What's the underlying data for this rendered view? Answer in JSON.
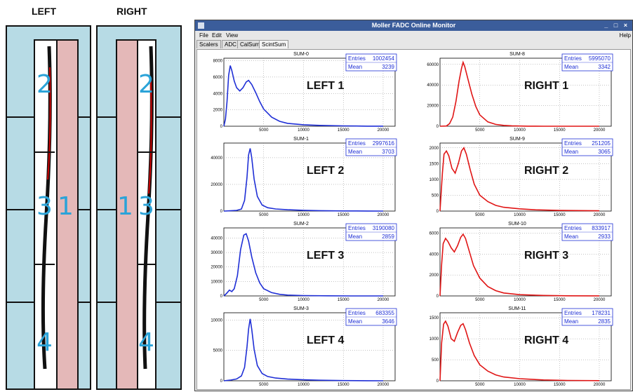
{
  "left_title": "LEFT",
  "right_title": "RIGHT",
  "left_numbers": [
    "2",
    "3",
    "1",
    "4"
  ],
  "right_numbers": [
    "2",
    "1",
    "3",
    "4"
  ],
  "window": {
    "title": "Moller FADC Online Monitor",
    "controls": "_ □ ×",
    "menu": [
      "File",
      "Edit",
      "View"
    ],
    "help": "Help",
    "tabs": [
      "Scalers",
      "ADC",
      "CalSum",
      "ScintSum"
    ],
    "active_tab": "ScintSum"
  },
  "colors": {
    "left": "#1f2fd6",
    "right": "#e01515",
    "stats_text": "#1f2fd6"
  },
  "plots": [
    {
      "name": "SUM-0",
      "label": "LEFT 1",
      "entries": "1002454",
      "mean": "3239",
      "side": "left",
      "y_ticks": [
        0,
        2000,
        4000,
        6000,
        8000
      ],
      "ymax": 8300,
      "curve": [
        [
          0,
          0
        ],
        [
          200,
          900
        ],
        [
          400,
          3000
        ],
        [
          600,
          6200
        ],
        [
          800,
          7400
        ],
        [
          1000,
          6800
        ],
        [
          1300,
          5500
        ],
        [
          1600,
          4700
        ],
        [
          2000,
          4300
        ],
        [
          2400,
          4700
        ],
        [
          2800,
          5400
        ],
        [
          3100,
          5600
        ],
        [
          3500,
          5100
        ],
        [
          4000,
          4100
        ],
        [
          4500,
          3000
        ],
        [
          5000,
          2100
        ],
        [
          6000,
          1100
        ],
        [
          7000,
          600
        ],
        [
          8000,
          350
        ],
        [
          10000,
          180
        ],
        [
          12000,
          100
        ],
        [
          15000,
          40
        ],
        [
          18000,
          10
        ],
        [
          20000,
          5
        ]
      ]
    },
    {
      "name": "SUM-8",
      "label": "RIGHT 1",
      "entries": "5995070",
      "mean": "3342",
      "side": "right",
      "y_ticks": [
        0,
        20000,
        40000,
        60000
      ],
      "ymax": 66000,
      "curve": [
        [
          0,
          0
        ],
        [
          800,
          200
        ],
        [
          1200,
          2500
        ],
        [
          1600,
          9000
        ],
        [
          2000,
          24000
        ],
        [
          2400,
          44000
        ],
        [
          2700,
          56000
        ],
        [
          2900,
          62000
        ],
        [
          3100,
          58000
        ],
        [
          3500,
          46000
        ],
        [
          4000,
          31000
        ],
        [
          4500,
          19000
        ],
        [
          5000,
          11000
        ],
        [
          6000,
          4200
        ],
        [
          7000,
          1800
        ],
        [
          8000,
          800
        ],
        [
          9000,
          400
        ],
        [
          10000,
          200
        ],
        [
          11000,
          100
        ],
        [
          12000,
          40
        ],
        [
          13000,
          10
        ],
        [
          20000,
          0
        ]
      ]
    },
    {
      "name": "SUM-1",
      "label": "LEFT 2",
      "entries": "2997616",
      "mean": "3703",
      "side": "left",
      "y_ticks": [
        0,
        20000,
        40000
      ],
      "ymax": 51000,
      "curve": [
        [
          0,
          0
        ],
        [
          800,
          200
        ],
        [
          1600,
          500
        ],
        [
          2200,
          1500
        ],
        [
          2600,
          8000
        ],
        [
          2900,
          25000
        ],
        [
          3100,
          42000
        ],
        [
          3300,
          47000
        ],
        [
          3500,
          40000
        ],
        [
          3800,
          24000
        ],
        [
          4200,
          11000
        ],
        [
          4800,
          4500
        ],
        [
          5500,
          2500
        ],
        [
          6500,
          1600
        ],
        [
          8000,
          1000
        ],
        [
          10000,
          600
        ],
        [
          12000,
          300
        ],
        [
          15000,
          120
        ],
        [
          18000,
          40
        ],
        [
          20000,
          10
        ]
      ]
    },
    {
      "name": "SUM-9",
      "label": "RIGHT 2",
      "entries": "251205",
      "mean": "3065",
      "side": "right",
      "y_ticks": [
        0,
        500,
        1000,
        1500,
        2000
      ],
      "ymax": 2150,
      "curve": [
        [
          0,
          0
        ],
        [
          300,
          1200
        ],
        [
          500,
          1800
        ],
        [
          800,
          1900
        ],
        [
          1100,
          1750
        ],
        [
          1500,
          1350
        ],
        [
          1900,
          1200
        ],
        [
          2300,
          1500
        ],
        [
          2700,
          1900
        ],
        [
          3000,
          2000
        ],
        [
          3300,
          1800
        ],
        [
          3800,
          1300
        ],
        [
          4300,
          850
        ],
        [
          5000,
          500
        ],
        [
          6000,
          300
        ],
        [
          7000,
          180
        ],
        [
          8000,
          120
        ],
        [
          10000,
          70
        ],
        [
          12000,
          40
        ],
        [
          15000,
          20
        ],
        [
          20000,
          8
        ]
      ]
    },
    {
      "name": "SUM-2",
      "label": "LEFT 3",
      "entries": "3190080",
      "mean": "2859",
      "side": "left",
      "y_ticks": [
        0,
        10000,
        20000,
        30000,
        40000
      ],
      "ymax": 47000,
      "curve": [
        [
          0,
          0
        ],
        [
          300,
          1500
        ],
        [
          700,
          4000
        ],
        [
          1000,
          3000
        ],
        [
          1300,
          5000
        ],
        [
          1700,
          14000
        ],
        [
          2100,
          32000
        ],
        [
          2500,
          42000
        ],
        [
          2800,
          43000
        ],
        [
          3100,
          38000
        ],
        [
          3500,
          27000
        ],
        [
          4000,
          16000
        ],
        [
          4500,
          9000
        ],
        [
          5000,
          5000
        ],
        [
          6000,
          2300
        ],
        [
          7000,
          1100
        ],
        [
          8000,
          600
        ],
        [
          10000,
          250
        ],
        [
          13000,
          80
        ],
        [
          16000,
          20
        ],
        [
          20000,
          5
        ]
      ]
    },
    {
      "name": "SUM-10",
      "label": "RIGHT 3",
      "entries": "833917",
      "mean": "2933",
      "side": "right",
      "y_ticks": [
        0,
        2000,
        4000,
        6000
      ],
      "ymax": 6500,
      "curve": [
        [
          0,
          0
        ],
        [
          200,
          3000
        ],
        [
          400,
          5000
        ],
        [
          700,
          5500
        ],
        [
          1000,
          5200
        ],
        [
          1400,
          4600
        ],
        [
          1800,
          4200
        ],
        [
          2200,
          4800
        ],
        [
          2600,
          5600
        ],
        [
          2900,
          5900
        ],
        [
          3200,
          5500
        ],
        [
          3700,
          4200
        ],
        [
          4200,
          2900
        ],
        [
          5000,
          1700
        ],
        [
          6000,
          900
        ],
        [
          7000,
          500
        ],
        [
          8000,
          280
        ],
        [
          10000,
          120
        ],
        [
          13000,
          50
        ],
        [
          16000,
          15
        ],
        [
          20000,
          5
        ]
      ]
    },
    {
      "name": "SUM-3",
      "label": "LEFT 4",
      "entries": "683355",
      "mean": "3646",
      "side": "left",
      "y_ticks": [
        0,
        5000,
        10000
      ],
      "ymax": 11200,
      "curve": [
        [
          0,
          0
        ],
        [
          800,
          100
        ],
        [
          1600,
          300
        ],
        [
          2200,
          800
        ],
        [
          2600,
          2200
        ],
        [
          2900,
          5500
        ],
        [
          3100,
          8500
        ],
        [
          3300,
          10200
        ],
        [
          3500,
          8500
        ],
        [
          3800,
          5200
        ],
        [
          4200,
          2500
        ],
        [
          4800,
          1200
        ],
        [
          5500,
          700
        ],
        [
          6500,
          450
        ],
        [
          8000,
          280
        ],
        [
          10000,
          160
        ],
        [
          12000,
          90
        ],
        [
          15000,
          40
        ],
        [
          18000,
          15
        ],
        [
          20000,
          5
        ]
      ]
    },
    {
      "name": "SUM-11",
      "label": "RIGHT 4",
      "entries": "178231",
      "mean": "2835",
      "side": "right",
      "y_ticks": [
        0,
        500,
        1000,
        1500
      ],
      "ymax": 1620,
      "curve": [
        [
          0,
          0
        ],
        [
          200,
          900
        ],
        [
          450,
          1350
        ],
        [
          700,
          1420
        ],
        [
          1000,
          1300
        ],
        [
          1400,
          1000
        ],
        [
          1800,
          940
        ],
        [
          2200,
          1150
        ],
        [
          2600,
          1320
        ],
        [
          2900,
          1360
        ],
        [
          3200,
          1220
        ],
        [
          3700,
          900
        ],
        [
          4300,
          600
        ],
        [
          5000,
          380
        ],
        [
          6000,
          230
        ],
        [
          7000,
          140
        ],
        [
          8000,
          90
        ],
        [
          10000,
          50
        ],
        [
          13000,
          20
        ],
        [
          16000,
          8
        ],
        [
          20000,
          3
        ]
      ]
    }
  ],
  "stats_labels": {
    "entries": "Entries",
    "mean": "Mean"
  },
  "x_ticks": [
    5000,
    10000,
    15000,
    20000
  ]
}
